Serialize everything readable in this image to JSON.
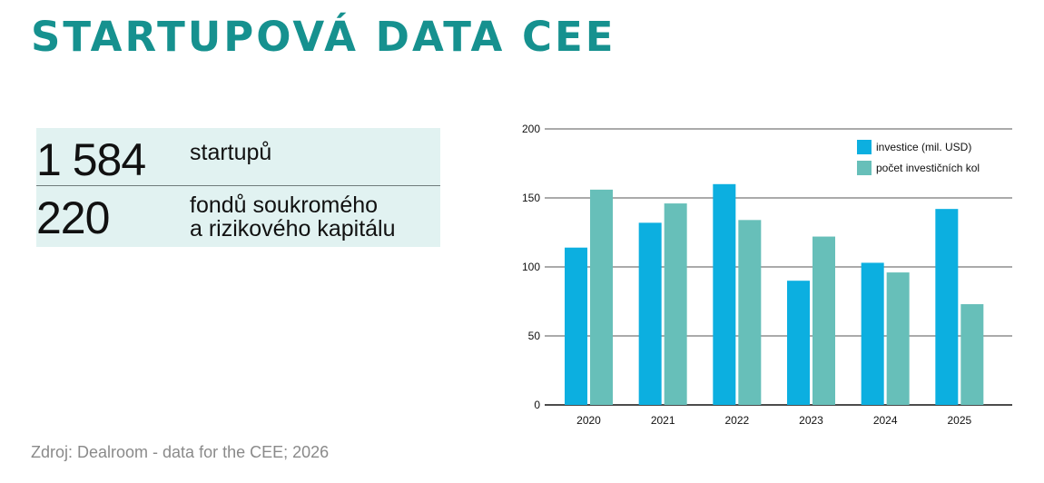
{
  "header": {
    "title": "STARTUPOVÁ DATA CEE"
  },
  "stats": [
    {
      "value": "1 584",
      "label_lines": [
        "startupů"
      ]
    },
    {
      "value": "220",
      "label_lines": [
        "fondů soukromého",
        "a rizikového kapitálu"
      ]
    }
  ],
  "source": "Zdroj: Dealroom - data for the CEE; 2026",
  "colors": {
    "title": "#16918f",
    "investice": "#0cafe0",
    "kola": "#67bfb9",
    "stat_bg": "#e1f2f1"
  },
  "chart_data": {
    "type": "bar",
    "title": "",
    "xlabel": "",
    "ylabel": "",
    "categories": [
      "2020",
      "2021",
      "2022",
      "2023",
      "2024",
      "2025"
    ],
    "series": [
      {
        "name": "investice (mil. USD)",
        "values": [
          114,
          132,
          160,
          90,
          103,
          142
        ]
      },
      {
        "name": "počet investičních kol",
        "values": [
          156,
          146,
          134,
          122,
          96,
          73
        ]
      }
    ],
    "ylim": [
      0,
      200
    ],
    "yticks": [
      "0",
      "50",
      "100",
      "150",
      "200"
    ],
    "grid": true,
    "legend_position": "top-right"
  }
}
